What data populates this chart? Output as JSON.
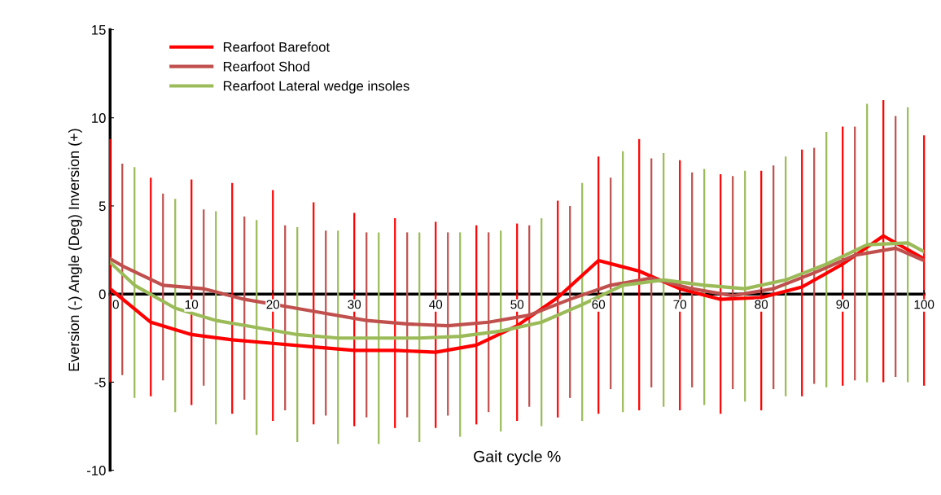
{
  "chart_data": {
    "type": "line",
    "xlabel": "Gait cycle %",
    "ylabel": "Eversion (-) Angle (Deg) Inversion (+)",
    "x": [
      0,
      5,
      10,
      15,
      20,
      25,
      30,
      35,
      40,
      45,
      50,
      55,
      60,
      65,
      70,
      75,
      80,
      85,
      90,
      95,
      100
    ],
    "xlim": [
      0,
      100
    ],
    "xticks": [
      0,
      10,
      20,
      30,
      40,
      50,
      60,
      70,
      80,
      90,
      100
    ],
    "ylim": [
      -10,
      15
    ],
    "yticks": [
      -10,
      -5,
      0,
      5,
      10,
      15
    ],
    "grid": false,
    "legend": "top left",
    "marker": "none",
    "line_style": "solid",
    "series": [
      {
        "name": "Rearfoot Barefoot",
        "color": "#ff0000",
        "values": [
          0.3,
          -1.6,
          -2.3,
          -2.6,
          -2.8,
          -3.0,
          -3.2,
          -3.2,
          -3.3,
          -2.9,
          -1.8,
          -0.2,
          1.9,
          1.3,
          0.3,
          -0.3,
          -0.2,
          0.4,
          1.7,
          3.3,
          2.0
        ],
        "errors": [
          [
            -5.0,
            8.8
          ],
          [
            -5.8,
            6.6
          ],
          [
            -6.3,
            6.5
          ],
          [
            -6.8,
            6.3
          ],
          [
            -7.2,
            5.9
          ],
          [
            -7.4,
            5.2
          ],
          [
            -7.5,
            4.6
          ],
          [
            -7.6,
            4.3
          ],
          [
            -7.6,
            4.1
          ],
          [
            -7.4,
            3.9
          ],
          [
            -7.2,
            4.0
          ],
          [
            -7.0,
            5.3
          ],
          [
            -6.8,
            7.8
          ],
          [
            -6.6,
            8.8
          ],
          [
            -6.6,
            7.6
          ],
          [
            -6.8,
            6.8
          ],
          [
            -6.6,
            7.0
          ],
          [
            -5.8,
            8.2
          ],
          [
            -5.2,
            9.5
          ],
          [
            -5.0,
            11.0
          ],
          [
            -5.2,
            9.0
          ]
        ]
      },
      {
        "name": "Rearfoot Shod",
        "color": "#c0504d",
        "x": [
          0,
          1.5,
          6.5,
          11.5,
          16.5,
          21.5,
          26.5,
          31.5,
          36.5,
          41.5,
          46.5,
          51.5,
          56.5,
          61.5,
          66.5,
          71.5,
          76.5,
          81.5,
          86.5,
          91.5,
          96.5,
          100
        ],
        "values": [
          2.0,
          1.6,
          0.5,
          0.3,
          -0.3,
          -0.7,
          -1.1,
          -1.5,
          -1.7,
          -1.8,
          -1.6,
          -1.2,
          -0.3,
          0.5,
          0.9,
          0.3,
          -0.1,
          0.3,
          1.2,
          2.2,
          2.6,
          1.9
        ],
        "errors": [
          null,
          [
            -4.6,
            7.4
          ],
          [
            -4.9,
            5.7
          ],
          [
            -5.2,
            4.8
          ],
          [
            -6.0,
            4.4
          ],
          [
            -6.6,
            3.9
          ],
          [
            -6.9,
            3.6
          ],
          [
            -7.0,
            3.5
          ],
          [
            -7.0,
            3.5
          ],
          [
            -6.9,
            3.5
          ],
          [
            -6.7,
            3.5
          ],
          [
            -6.4,
            3.9
          ],
          [
            -5.9,
            5.0
          ],
          [
            -5.4,
            6.6
          ],
          [
            -5.3,
            7.7
          ],
          [
            -5.3,
            6.9
          ],
          [
            -5.4,
            6.7
          ],
          [
            -5.4,
            7.3
          ],
          [
            -5.1,
            8.3
          ],
          [
            -4.9,
            9.5
          ],
          [
            -4.7,
            10.1
          ],
          null
        ]
      },
      {
        "name": "Rearfoot Lateral wedge insoles",
        "color": "#9bbb59",
        "x": [
          0,
          3,
          8,
          13,
          18,
          23,
          28,
          33,
          38,
          43,
          48,
          53,
          58,
          63,
          68,
          73,
          78,
          83,
          88,
          93,
          98,
          100
        ],
        "values": [
          1.8,
          0.5,
          -0.8,
          -1.5,
          -1.9,
          -2.3,
          -2.5,
          -2.5,
          -2.5,
          -2.4,
          -2.1,
          -1.6,
          -0.6,
          0.5,
          0.8,
          0.5,
          0.3,
          0.8,
          1.7,
          2.8,
          2.9,
          2.4
        ],
        "errors": [
          null,
          [
            -5.9,
            7.2
          ],
          [
            -6.7,
            5.4
          ],
          [
            -7.4,
            4.7
          ],
          [
            -8.0,
            4.2
          ],
          [
            -8.4,
            3.8
          ],
          [
            -8.5,
            3.6
          ],
          [
            -8.5,
            3.5
          ],
          [
            -8.4,
            3.5
          ],
          [
            -8.1,
            3.5
          ],
          [
            -7.8,
            3.6
          ],
          [
            -7.5,
            4.3
          ],
          [
            -7.2,
            6.3
          ],
          [
            -6.7,
            8.1
          ],
          [
            -6.4,
            8.0
          ],
          [
            -6.3,
            7.1
          ],
          [
            -6.1,
            7.0
          ],
          [
            -5.8,
            7.8
          ],
          [
            -5.3,
            9.2
          ],
          [
            -5.0,
            10.8
          ],
          [
            -5.0,
            10.6
          ],
          null
        ]
      }
    ]
  }
}
